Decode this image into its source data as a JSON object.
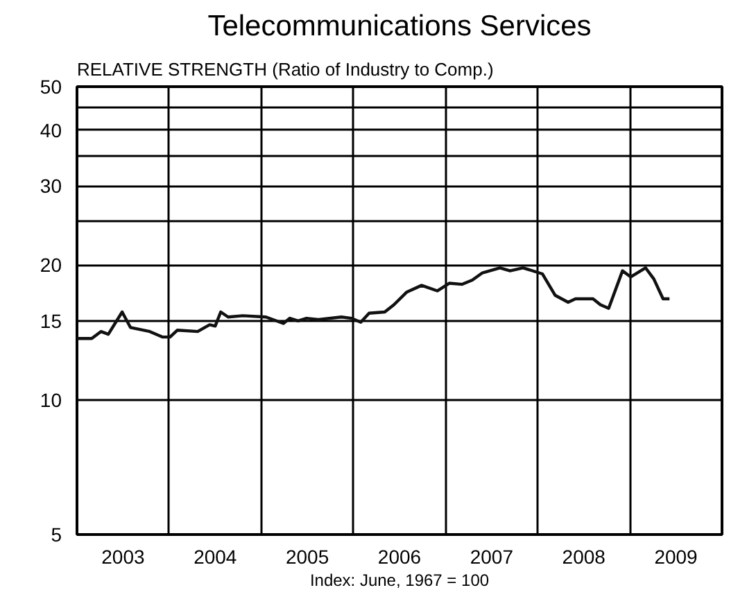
{
  "chart_data": {
    "type": "line",
    "title": "Telecommunications Services",
    "subtitle": "RELATIVE STRENGTH (Ratio of Industry to Comp.)",
    "xlabel": "Index: June, 1967 = 100",
    "log": "y",
    "grid": true,
    "marker": "none",
    "line_style": "solid",
    "xlim": [
      2003,
      2010
    ],
    "xticks": [
      {
        "value": 2003.5,
        "label": "2003"
      },
      {
        "value": 2004,
        "label": null
      },
      {
        "value": 2004.5,
        "label": "2004"
      },
      {
        "value": 2005,
        "label": null
      },
      {
        "value": 2005.5,
        "label": "2005"
      },
      {
        "value": 2006,
        "label": null
      },
      {
        "value": 2006.5,
        "label": "2006"
      },
      {
        "value": 2007,
        "label": null
      },
      {
        "value": 2007.5,
        "label": "2007"
      },
      {
        "value": 2008,
        "label": null
      },
      {
        "value": 2008.5,
        "label": "2008"
      },
      {
        "value": 2009,
        "label": null
      },
      {
        "value": 2009.5,
        "label": "2009"
      }
    ],
    "ylim": [
      5,
      50
    ],
    "yticks": [
      5,
      10,
      15,
      20,
      {
        "value": 25,
        "label": null
      },
      30,
      {
        "value": 35,
        "label": null
      },
      40,
      {
        "value": 45,
        "label": null
      },
      50
    ],
    "x": [
      2003.0,
      2003.16,
      2003.26,
      2003.34,
      2003.49,
      2003.58,
      2003.79,
      2003.93,
      2004.01,
      2004.09,
      2004.31,
      2004.44,
      2004.5,
      2004.56,
      2004.64,
      2004.8,
      2005.05,
      2005.24,
      2005.31,
      2005.4,
      2005.49,
      2005.62,
      2005.87,
      2005.98,
      2006.08,
      2006.17,
      2006.34,
      2006.44,
      2006.58,
      2006.74,
      2006.91,
      2007.04,
      2007.18,
      2007.29,
      2007.4,
      2007.59,
      2007.7,
      2007.84,
      2008.05,
      2008.19,
      2008.33,
      2008.41,
      2008.6,
      2008.68,
      2008.77,
      2008.92,
      2009.01,
      2009.17,
      2009.26,
      2009.36,
      2009.43
    ],
    "series": [
      {
        "color": "#111111",
        "values": [
          13.7,
          13.7,
          14.2,
          14.0,
          15.7,
          14.5,
          14.2,
          13.8,
          13.8,
          14.3,
          14.2,
          14.7,
          14.6,
          15.7,
          15.3,
          15.4,
          15.3,
          14.8,
          15.2,
          15.0,
          15.2,
          15.1,
          15.3,
          15.2,
          14.9,
          15.6,
          15.7,
          16.3,
          17.4,
          18.0,
          17.5,
          18.2,
          18.1,
          18.5,
          19.2,
          19.7,
          19.4,
          19.7,
          19.1,
          17.1,
          16.5,
          16.8,
          16.8,
          16.3,
          16.0,
          19.4,
          18.8,
          19.7,
          18.6,
          16.8,
          16.8
        ]
      }
    ]
  }
}
